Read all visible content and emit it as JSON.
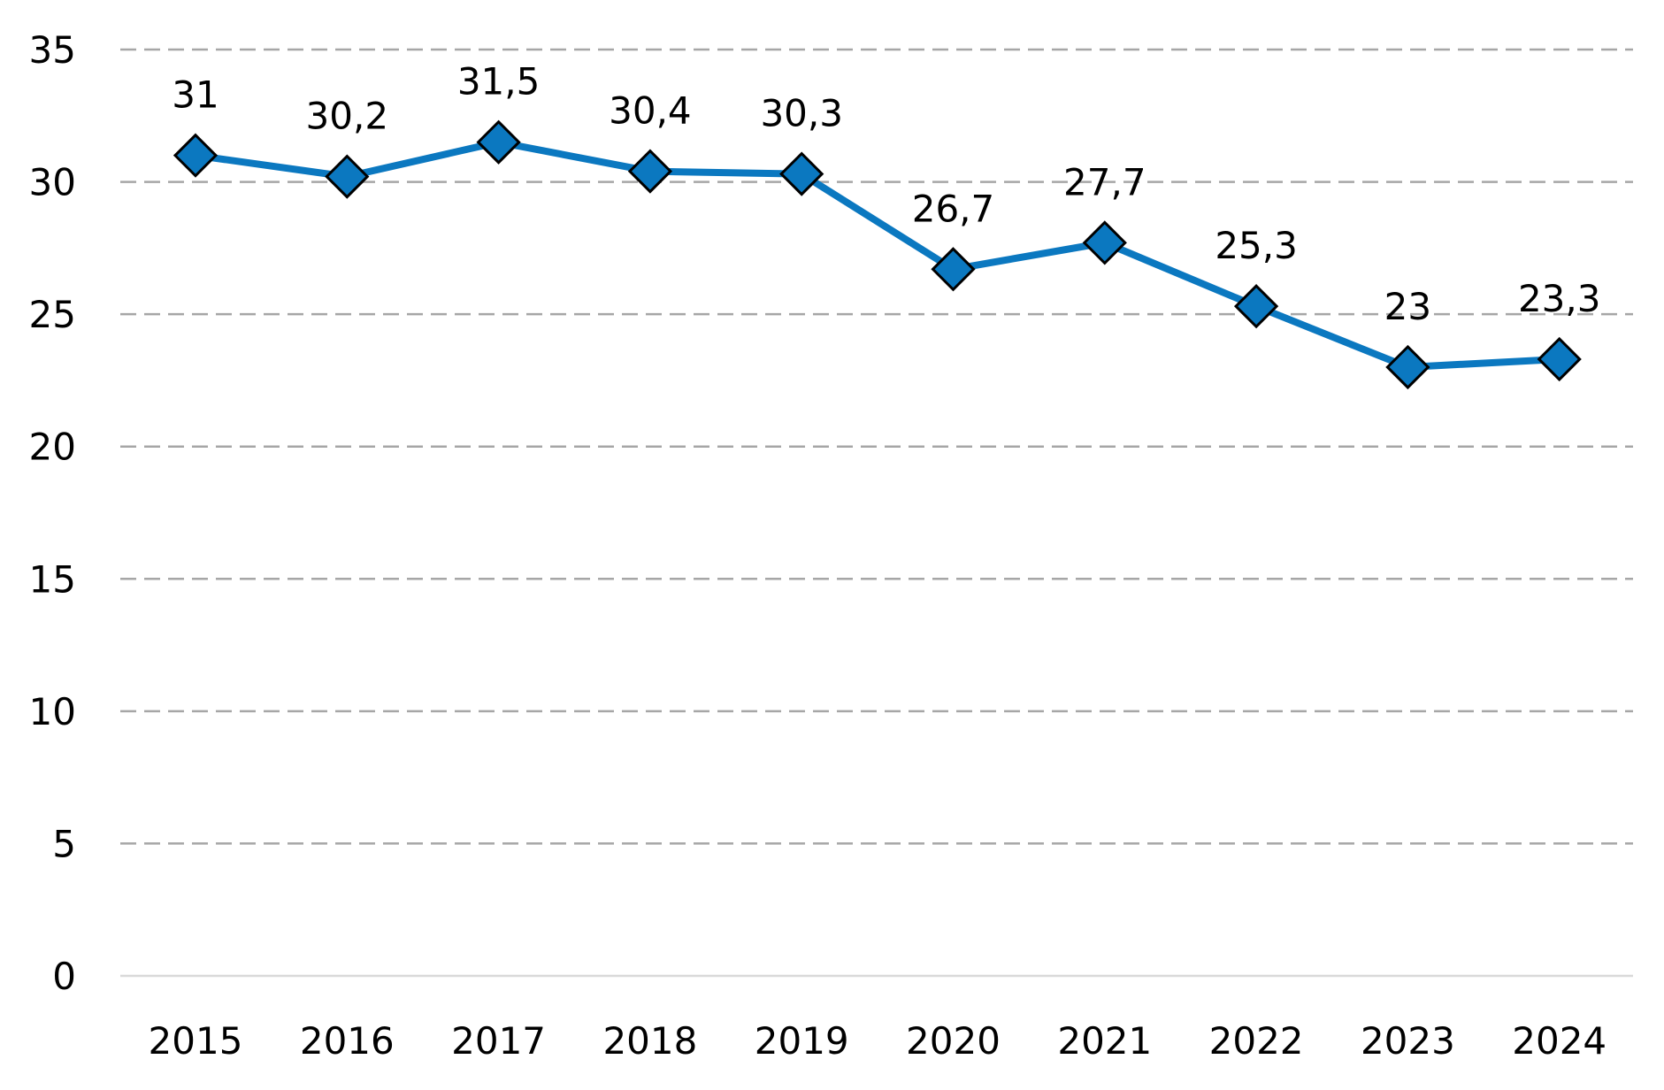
{
  "chart_data": {
    "type": "line",
    "categories": [
      "2015",
      "2016",
      "2017",
      "2018",
      "2019",
      "2020",
      "2021",
      "2022",
      "2023",
      "2024"
    ],
    "series": [
      {
        "values": [
          31,
          30.2,
          31.5,
          30.4,
          30.3,
          26.7,
          27.7,
          25.3,
          23,
          23.3
        ],
        "data_labels": [
          "31",
          "30,2",
          "31,5",
          "30,4",
          "30,3",
          "26,7",
          "27,7",
          "25,3",
          "23",
          "23,3"
        ],
        "color": "#0b78c0",
        "marker": "diamond"
      }
    ],
    "y_ticks": [
      "0",
      "5",
      "10",
      "15",
      "20",
      "25",
      "30",
      "35"
    ],
    "ylim": [
      0,
      35
    ],
    "grid": true,
    "grid_style": "dashed",
    "grid_color": "#a6a6a6",
    "axis_color": "#d9d9d9",
    "legend": "none"
  }
}
